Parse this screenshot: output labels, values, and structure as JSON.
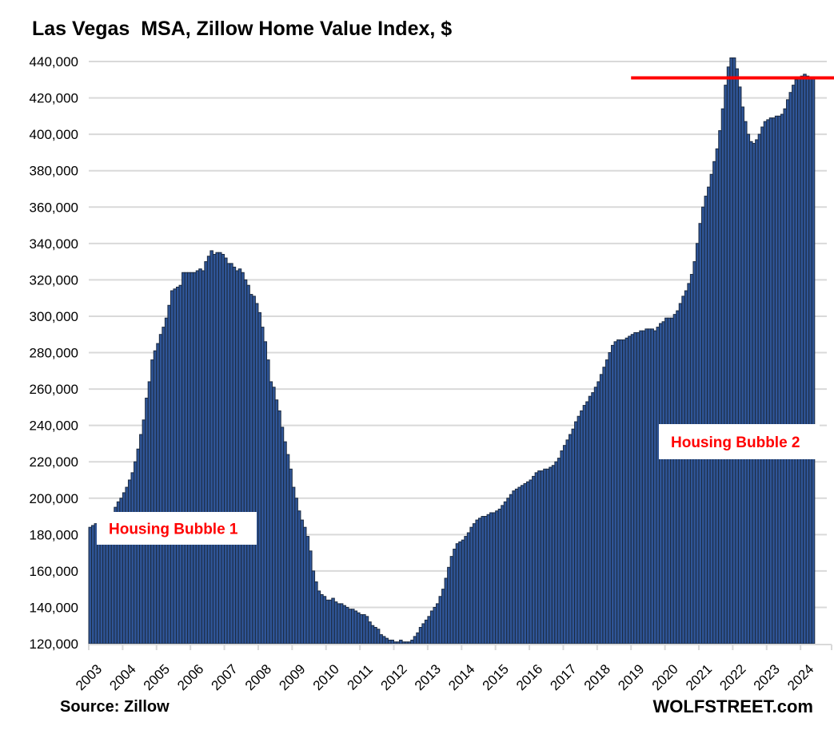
{
  "chart_data": {
    "type": "bar",
    "title": "Las Vegas  MSA, Zillow Home Value Index, $",
    "xlabel": "",
    "ylabel": "",
    "ylim": [
      120000,
      440000
    ],
    "yticks": [
      120000,
      140000,
      160000,
      180000,
      200000,
      220000,
      240000,
      260000,
      280000,
      300000,
      320000,
      340000,
      360000,
      380000,
      400000,
      420000,
      440000
    ],
    "ytick_labels": [
      "120,000",
      "140,000",
      "160,000",
      "180,000",
      "200,000",
      "220,000",
      "240,000",
      "260,000",
      "280,000",
      "300,000",
      "320,000",
      "340,000",
      "360,000",
      "380,000",
      "400,000",
      "420,000",
      "440,000"
    ],
    "xtick_labels": [
      "2003",
      "2004",
      "2005",
      "2006",
      "2007",
      "2008",
      "2009",
      "2010",
      "2011",
      "2012",
      "2013",
      "2014",
      "2015",
      "2016",
      "2017",
      "2018",
      "2019",
      "2020",
      "2021",
      "2022",
      "2023",
      "2024"
    ],
    "grid": true,
    "frequency": "monthly",
    "start": "2003-01",
    "values": [
      184000,
      185000,
      186000,
      184000,
      184000,
      185000,
      188000,
      190000,
      192000,
      195000,
      198000,
      200000,
      203000,
      206000,
      210000,
      214000,
      220000,
      227000,
      235000,
      243000,
      255000,
      264000,
      276000,
      281000,
      285000,
      290000,
      294000,
      299000,
      306000,
      314000,
      315000,
      316000,
      317000,
      324000,
      324000,
      324000,
      324000,
      324000,
      325000,
      326000,
      325000,
      330000,
      333000,
      336000,
      334000,
      335000,
      335000,
      334000,
      332000,
      329000,
      329000,
      327000,
      325000,
      326000,
      324000,
      320000,
      317000,
      312000,
      311000,
      307000,
      302000,
      294000,
      286000,
      276000,
      264000,
      261000,
      254000,
      248000,
      239000,
      231000,
      224000,
      216000,
      206000,
      200000,
      193000,
      188000,
      184000,
      179000,
      171000,
      160000,
      154000,
      149000,
      147000,
      146000,
      144000,
      144000,
      145000,
      143000,
      142000,
      142000,
      141000,
      140000,
      139000,
      139000,
      138000,
      137000,
      136000,
      136000,
      135000,
      132000,
      130000,
      129000,
      128000,
      125000,
      124000,
      123000,
      122000,
      122000,
      121000,
      121000,
      122000,
      121000,
      121000,
      121000,
      122000,
      124000,
      126000,
      129000,
      131000,
      133000,
      135000,
      138000,
      140000,
      142000,
      146000,
      150000,
      156000,
      162000,
      168000,
      172000,
      175000,
      176000,
      177000,
      179000,
      181000,
      184000,
      186000,
      188000,
      189000,
      190000,
      190000,
      191000,
      192000,
      192000,
      193000,
      194000,
      196000,
      198000,
      200000,
      202000,
      204000,
      205000,
      206000,
      207000,
      208000,
      209000,
      210000,
      212000,
      214000,
      215000,
      215000,
      216000,
      216000,
      217000,
      218000,
      220000,
      222000,
      226000,
      229000,
      232000,
      235000,
      238000,
      242000,
      245000,
      248000,
      251000,
      253000,
      256000,
      258000,
      261000,
      264000,
      268000,
      272000,
      276000,
      280000,
      284000,
      286000,
      287000,
      287000,
      287000,
      288000,
      289000,
      290000,
      291000,
      291000,
      292000,
      292000,
      293000,
      293000,
      293000,
      292000,
      294000,
      296000,
      297000,
      299000,
      299000,
      299000,
      301000,
      303000,
      307000,
      311000,
      314000,
      318000,
      323000,
      330000,
      340000,
      351000,
      360000,
      366000,
      371000,
      378000,
      385000,
      392000,
      402000,
      414000,
      427000,
      437000,
      442000,
      442000,
      436000,
      426000,
      415000,
      407000,
      400000,
      396000,
      395000,
      397000,
      400000,
      404000,
      407000,
      408000,
      409000,
      409000,
      410000,
      410000,
      411000,
      414000,
      419000,
      423000,
      427000,
      430000,
      431000,
      432000,
      433000,
      432000,
      431000,
      431000
    ],
    "reference_line": {
      "value": 431000,
      "from": "2019-01",
      "color": "#ff0000"
    },
    "bar_color": "#2f5597",
    "annotations": [
      {
        "text": "Housing Bubble 1",
        "color": "#ff0000"
      },
      {
        "text": "Housing Bubble 2",
        "color": "#ff0000"
      }
    ]
  },
  "footer": {
    "source": "Source: Zillow",
    "brand": "WOLFSTREET.com"
  }
}
